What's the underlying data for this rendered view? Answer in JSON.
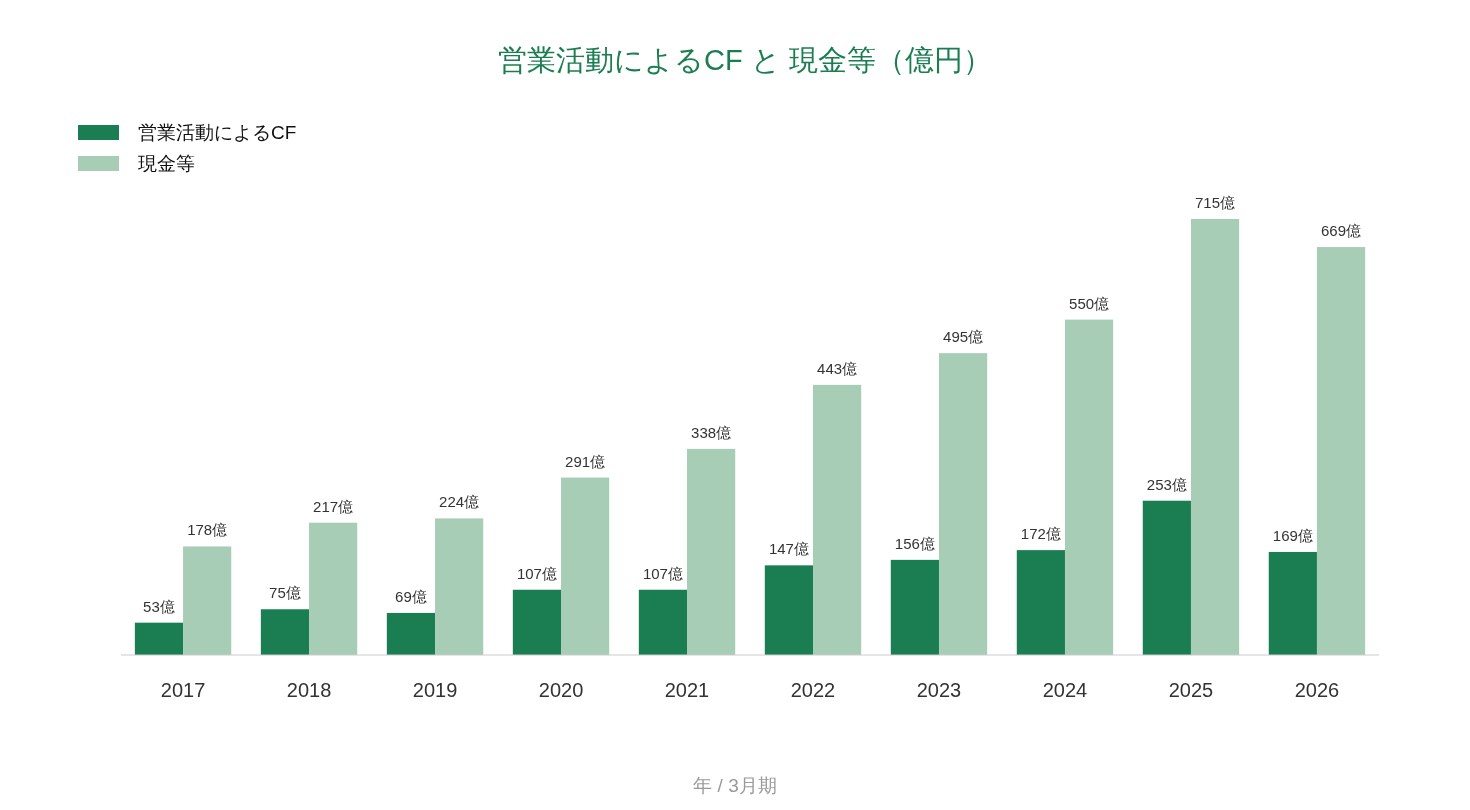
{
  "chart_data": {
    "type": "bar",
    "title": "営業活動によるCF と 現金等（億円）",
    "xlabel": "年 / 3月期",
    "legend": "top left",
    "categories": [
      "2017",
      "2018",
      "2019",
      "2020",
      "2021",
      "2022",
      "2023",
      "2024",
      "2025",
      "2026"
    ],
    "series": [
      {
        "name": "営業活動によるCF",
        "color": "#1b7d52",
        "values": [
          53,
          75,
          69,
          107,
          107,
          147,
          156,
          172,
          253,
          169
        ],
        "value_labels": [
          "53億",
          "75億",
          "69億",
          "107億",
          "107億",
          "147億",
          "156億",
          "172億",
          "253億",
          "169億"
        ]
      },
      {
        "name": "現金等",
        "color": "#a8cdb7",
        "values": [
          178,
          217,
          224,
          291,
          338,
          443,
          495,
          550,
          715,
          669
        ],
        "value_labels": [
          "178億",
          "217億",
          "224億",
          "291億",
          "338億",
          "443億",
          "495億",
          "550億",
          "715億",
          "669億"
        ]
      }
    ]
  }
}
